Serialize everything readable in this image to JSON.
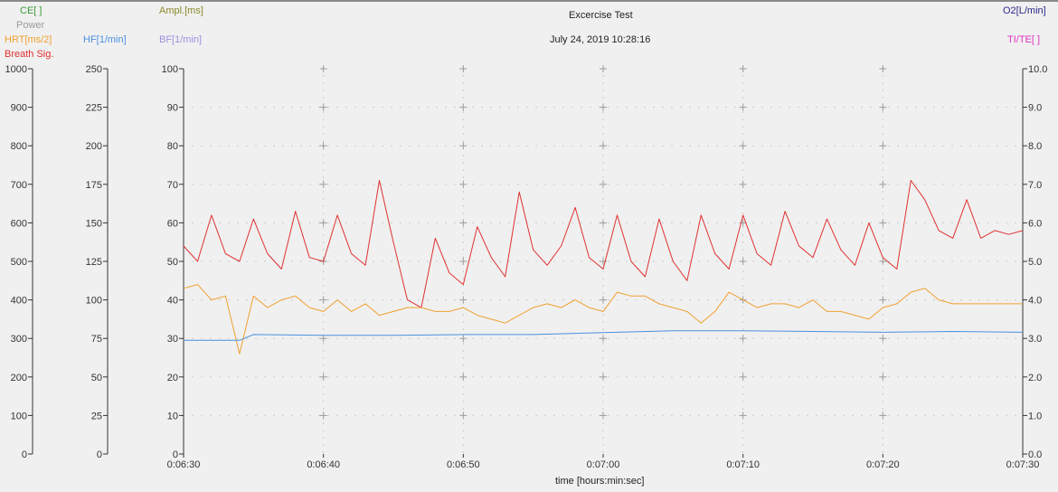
{
  "chart_data": {
    "type": "line",
    "title": "Excercise Test",
    "subtitle": "July 24, 2019 10:28:16",
    "xlabel": "time [hours:min:sec]",
    "x_ticks": [
      "0:06:30",
      "0:06:40",
      "0:06:50",
      "0:07:00",
      "0:07:10",
      "0:07:20",
      "0:07:30"
    ],
    "x_range_seconds": [
      390,
      450
    ],
    "grid": true,
    "axes": [
      {
        "name": "CE[ ]",
        "color": "#3a9a3a",
        "side": "left"
      },
      {
        "name": "Power",
        "color": "#9a9a9a",
        "side": "left"
      },
      {
        "name": "HRT[ms/2]",
        "color": "#f0a030",
        "side": "left"
      },
      {
        "name": "Breath Sig.",
        "color": "#e03030",
        "side": "left",
        "ticks": [
          "1000",
          "900",
          "800",
          "700",
          "600",
          "500",
          "400",
          "300",
          "200",
          "100",
          "0"
        ],
        "range": [
          0,
          1000
        ]
      },
      {
        "name": "HF[1/min]",
        "color": "#4a90e0",
        "side": "left",
        "ticks": [
          "250",
          "225",
          "200",
          "175",
          "150",
          "125",
          "100",
          "75",
          "50",
          "25",
          "0"
        ],
        "range": [
          0,
          250
        ]
      },
      {
        "name": "Ampl.[ms]",
        "color": "#8a8a2a",
        "side": "left"
      },
      {
        "name": "BF[1/min]",
        "color": "#a090e0",
        "side": "left",
        "ticks": [
          "100",
          "90",
          "80",
          "70",
          "60",
          "50",
          "40",
          "30",
          "20",
          "10",
          "0"
        ],
        "range": [
          0,
          100
        ]
      },
      {
        "name": "O2[L/min]",
        "color": "#2a2a8a",
        "side": "right"
      },
      {
        "name": "TI/TE[ ]",
        "color": "#e030c0",
        "side": "right",
        "ticks": [
          "10.0",
          "9.0",
          "8.0",
          "7.0",
          "6.0",
          "5.0",
          "4.0",
          "3.0",
          "2.0",
          "1.0",
          "0.0"
        ],
        "range": [
          0,
          10
        ]
      }
    ],
    "series": [
      {
        "name": "Breath Sig.",
        "color": "#e03030",
        "axis_range": [
          0,
          100
        ],
        "x": [
          390,
          391,
          392,
          393,
          394,
          395,
          396,
          397,
          398,
          399,
          400,
          401,
          402,
          403,
          404,
          405,
          406,
          407,
          408,
          409,
          410,
          411,
          412,
          413,
          414,
          415,
          416,
          417,
          418,
          419,
          420,
          421,
          422,
          423,
          424,
          425,
          426,
          427,
          428,
          429,
          430,
          431,
          432,
          433,
          434,
          435,
          436,
          437,
          438,
          439,
          440,
          441,
          442,
          443,
          444,
          445,
          446,
          447,
          448,
          449,
          450
        ],
        "values": [
          54,
          50,
          62,
          52,
          50,
          61,
          52,
          48,
          63,
          51,
          50,
          62,
          52,
          49,
          71,
          55,
          40,
          38,
          56,
          47,
          44,
          59,
          51,
          46,
          68,
          53,
          49,
          54,
          64,
          51,
          48,
          62,
          50,
          46,
          61,
          50,
          45,
          62,
          52,
          48,
          62,
          52,
          49,
          63,
          54,
          51,
          61,
          53,
          49,
          60,
          51,
          48,
          71,
          66,
          58,
          56,
          66,
          56,
          58,
          57,
          58
        ]
      },
      {
        "name": "HRT[ms/2]",
        "color": "#f0a030",
        "axis_range": [
          0,
          100
        ],
        "x": [
          390,
          391,
          392,
          393,
          394,
          395,
          396,
          397,
          398,
          399,
          400,
          401,
          402,
          403,
          404,
          405,
          406,
          407,
          408,
          409,
          410,
          411,
          412,
          413,
          414,
          415,
          416,
          417,
          418,
          419,
          420,
          421,
          422,
          423,
          424,
          425,
          426,
          427,
          428,
          429,
          430,
          431,
          432,
          433,
          434,
          435,
          436,
          437,
          438,
          439,
          440,
          441,
          442,
          443,
          444,
          445,
          446,
          447,
          448,
          449,
          450
        ],
        "values": [
          43,
          44,
          40,
          41,
          26,
          41,
          38,
          40,
          41,
          38,
          37,
          40,
          37,
          39,
          36,
          37,
          38,
          38,
          37,
          37,
          38,
          36,
          35,
          34,
          36,
          38,
          39,
          38,
          40,
          38,
          37,
          42,
          41,
          41,
          39,
          38,
          37,
          34,
          37,
          42,
          40,
          38,
          39,
          39,
          38,
          40,
          37,
          37,
          36,
          35,
          38,
          39,
          42,
          43,
          40,
          39,
          39,
          39,
          39,
          39,
          39
        ]
      },
      {
        "name": "HF[1/min]",
        "color": "#4a90e0",
        "axis_range": [
          0,
          100
        ],
        "x": [
          390,
          394,
          395,
          400,
          405,
          410,
          415,
          420,
          425,
          430,
          435,
          440,
          445,
          450
        ],
        "values": [
          29.5,
          29.5,
          31,
          30.8,
          30.8,
          31,
          31,
          31.5,
          32,
          32,
          31.8,
          31.6,
          31.8,
          31.6
        ]
      }
    ]
  }
}
